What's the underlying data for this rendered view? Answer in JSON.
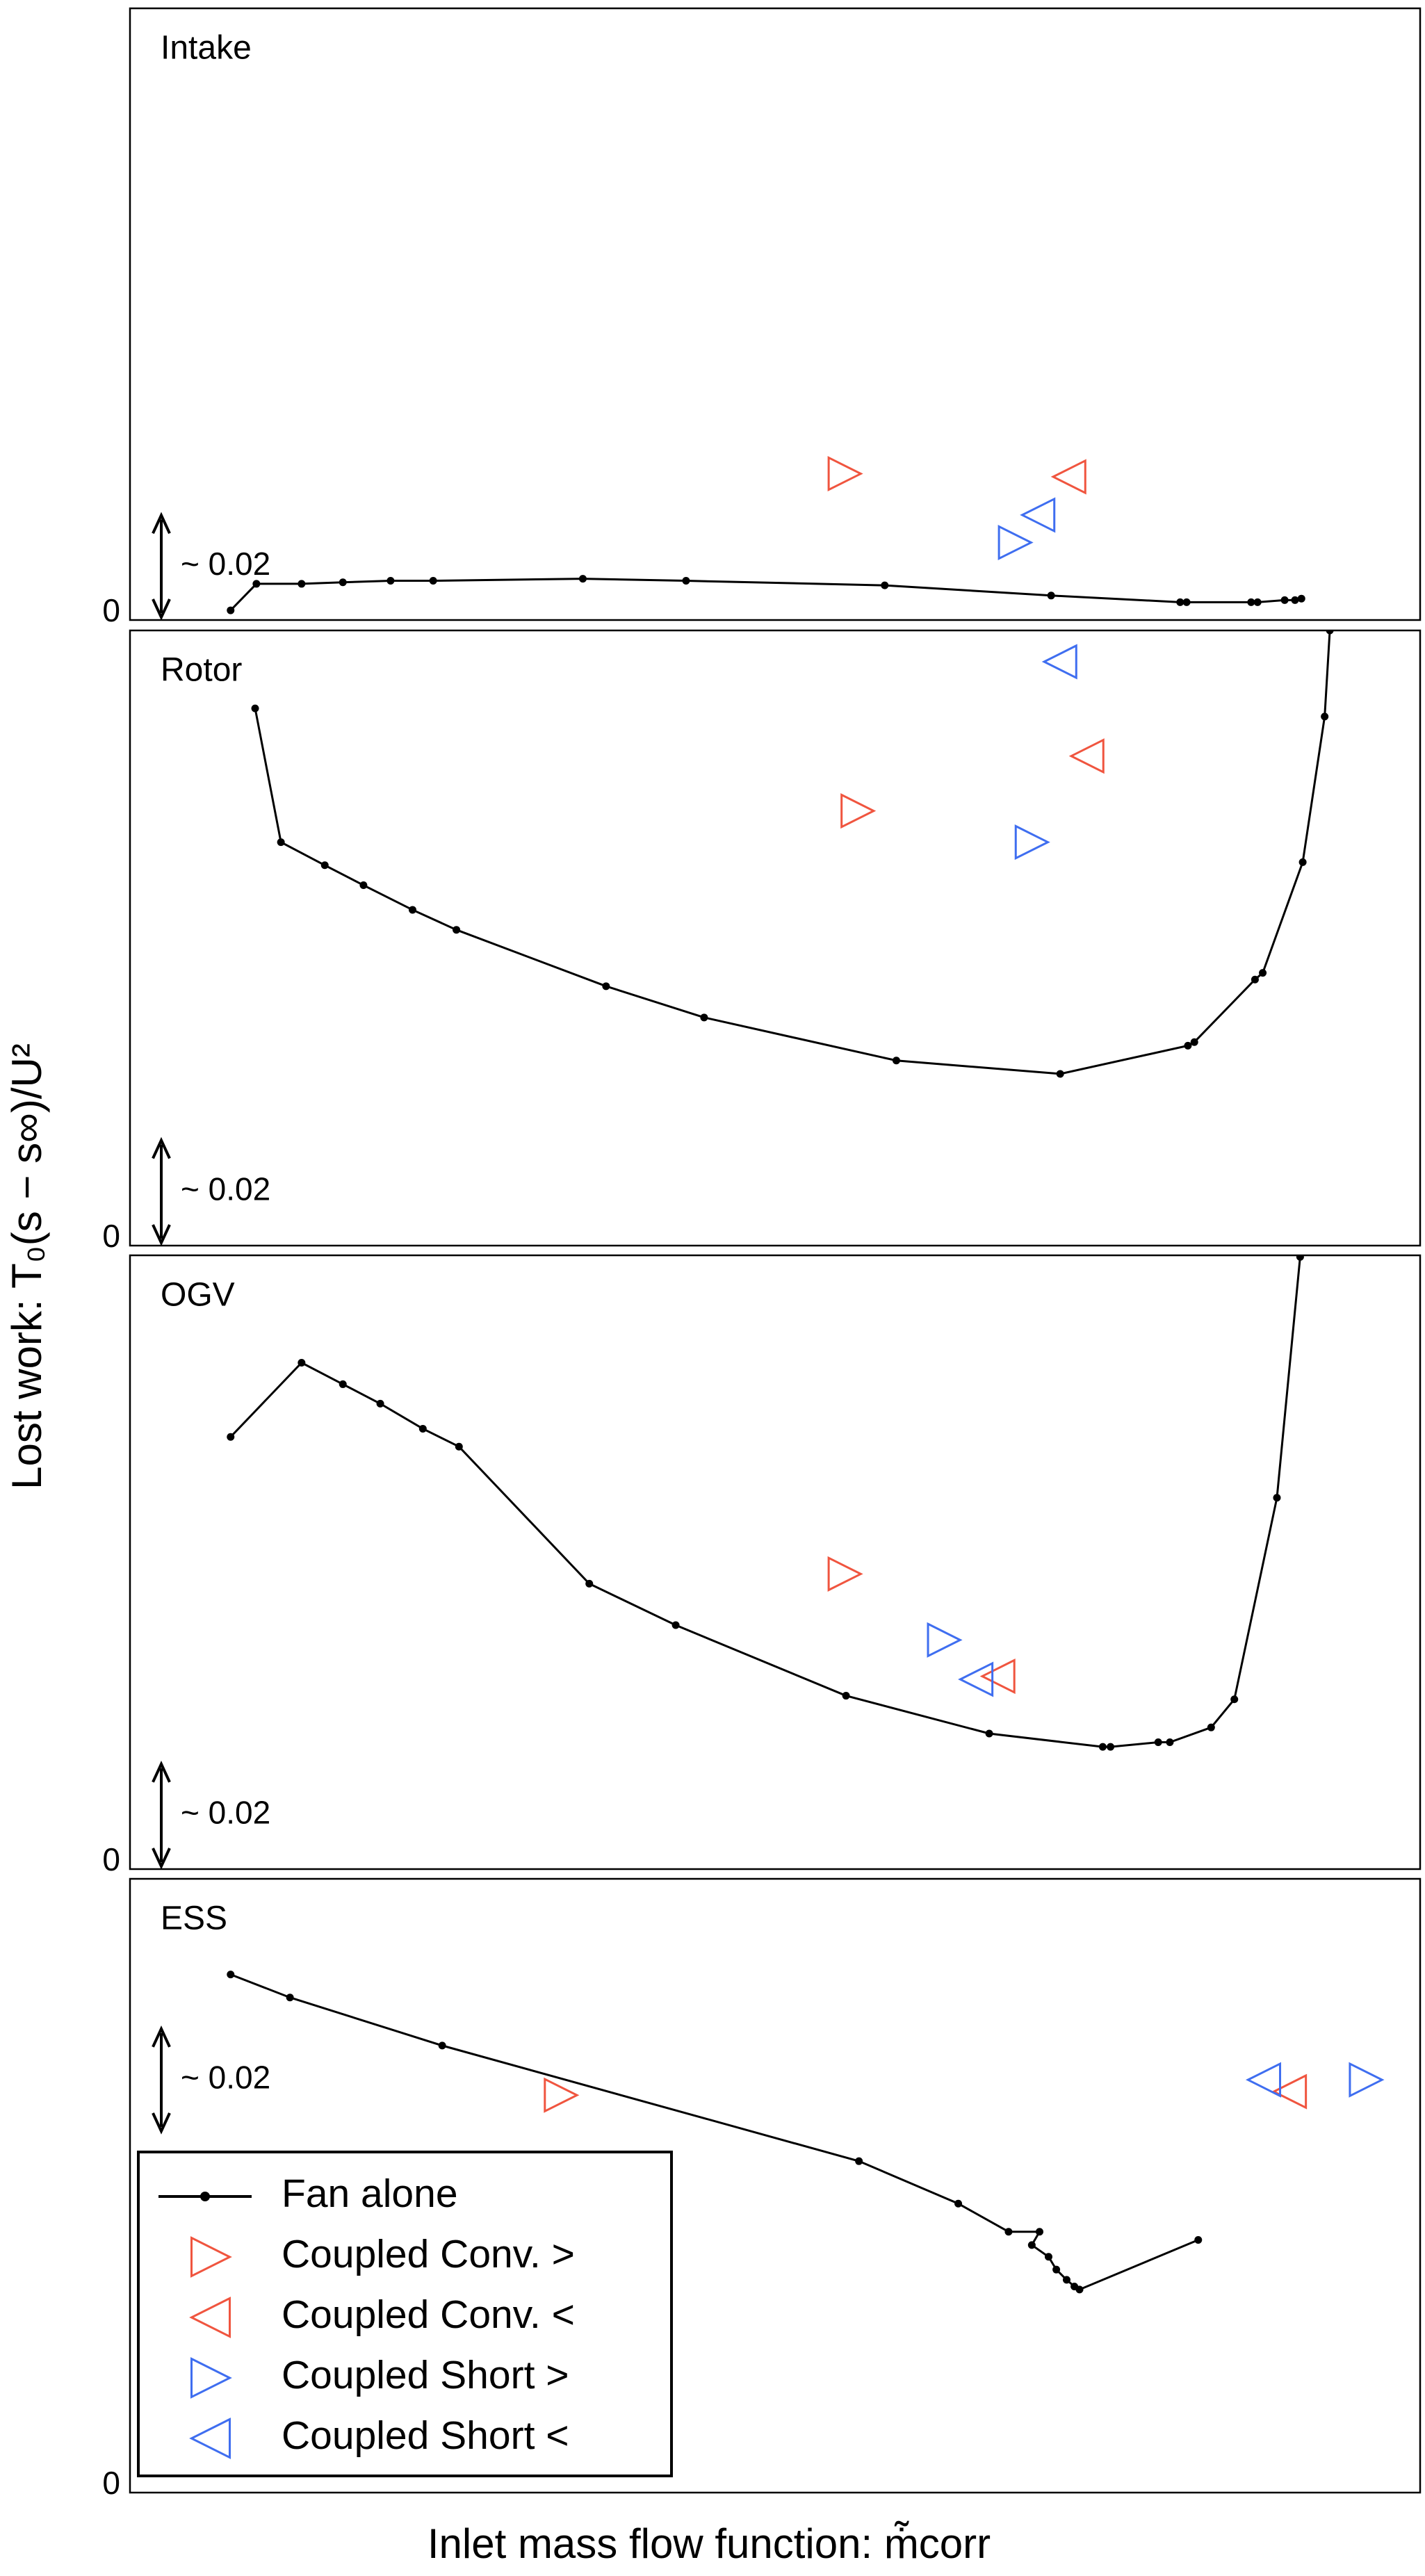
{
  "xlabel": "Inlet mass flow function: ṁ̃corr",
  "ylabel": "Lost work: T₀(s − s∞)/U²",
  "chart_data": [
    {
      "type": "line",
      "title": "Intake",
      "xlim": [
        0,
        100
      ],
      "ylim": [
        0,
        0.12
      ],
      "yticks": [
        0
      ],
      "scale_bar": {
        "value": 0.02,
        "label": "~ 0.02"
      },
      "series": [
        {
          "color": "#000000",
          "marker": "line-dot",
          "x": [
            7.8,
            9.8,
            13.3,
            16.5,
            20.2,
            23.5,
            35.1,
            43.1,
            58.5,
            71.4,
            81.4,
            81.9,
            86.9,
            87.4,
            89.5,
            90.3,
            90.8
          ],
          "values": [
            0.0019,
            0.0071,
            0.0071,
            0.0074,
            0.0077,
            0.0077,
            0.0081,
            0.0077,
            0.0068,
            0.0048,
            0.0035,
            0.0035,
            0.0035,
            0.0035,
            0.0039,
            0.0039,
            0.0042
          ]
        },
        {
          "color": "#f0553f",
          "marker": "triangle-right",
          "x": [
            55.4
          ],
          "values": [
            0.0287
          ]
        },
        {
          "color": "#f0553f",
          "marker": "triangle-left",
          "x": [
            72.8
          ],
          "values": [
            0.0281
          ]
        },
        {
          "color": "#3f6ef0",
          "marker": "triangle-right",
          "x": [
            68.6
          ],
          "values": [
            0.0152
          ]
        },
        {
          "color": "#3f6ef0",
          "marker": "triangle-left",
          "x": [
            70.4
          ],
          "values": [
            0.0206
          ]
        }
      ]
    },
    {
      "type": "line",
      "title": "Rotor",
      "xlim": [
        0,
        100
      ],
      "ylim": [
        0,
        0.12
      ],
      "yticks": [
        0
      ],
      "scale_bar": {
        "value": 0.02,
        "label": "~ 0.02"
      },
      "series": [
        {
          "color": "#000000",
          "marker": "line-dot",
          "x": [
            9.7,
            11.7,
            15.1,
            18.1,
            21.9,
            25.3,
            36.9,
            44.5,
            59.4,
            72.1,
            82.0,
            82.5,
            87.2,
            87.8,
            90.9,
            92.6,
            93.0
          ],
          "values": [
            0.1048,
            0.0787,
            0.0742,
            0.0703,
            0.0655,
            0.0616,
            0.0506,
            0.0445,
            0.0361,
            0.0335,
            0.039,
            0.0397,
            0.0519,
            0.0532,
            0.0748,
            0.1032,
            0.12
          ]
        },
        {
          "color": "#f0553f",
          "marker": "triangle-right",
          "x": [
            56.4
          ],
          "values": [
            0.0848
          ]
        },
        {
          "color": "#f0553f",
          "marker": "triangle-left",
          "x": [
            74.2
          ],
          "values": [
            0.0955
          ]
        },
        {
          "color": "#3f6ef0",
          "marker": "triangle-right",
          "x": [
            69.9
          ],
          "values": [
            0.0787
          ]
        },
        {
          "color": "#3f6ef0",
          "marker": "triangle-left",
          "x": [
            72.1
          ],
          "values": [
            0.1139
          ]
        }
      ]
    },
    {
      "type": "line",
      "title": "OGV",
      "xlim": [
        0,
        100
      ],
      "ylim": [
        0,
        0.12
      ],
      "yticks": [
        0
      ],
      "scale_bar": {
        "value": 0.02,
        "label": "~ 0.02"
      },
      "series": [
        {
          "color": "#000000",
          "marker": "line-dot",
          "x": [
            7.8,
            13.3,
            16.5,
            19.4,
            22.7,
            25.5,
            35.6,
            42.3,
            55.5,
            66.6,
            75.4,
            76.0,
            79.7,
            80.6,
            83.8,
            85.6,
            88.9,
            90.7
          ],
          "values": [
            0.0845,
            0.099,
            0.0948,
            0.091,
            0.0861,
            0.0826,
            0.0558,
            0.0477,
            0.0339,
            0.0265,
            0.0239,
            0.0239,
            0.0248,
            0.0248,
            0.0277,
            0.0332,
            0.0726,
            0.1197
          ]
        },
        {
          "color": "#f0553f",
          "marker": "triangle-right",
          "x": [
            55.4
          ],
          "values": [
            0.0577
          ]
        },
        {
          "color": "#f0553f",
          "marker": "triangle-left",
          "x": [
            67.3
          ],
          "values": [
            0.0377
          ]
        },
        {
          "color": "#3f6ef0",
          "marker": "triangle-right",
          "x": [
            63.1
          ],
          "values": [
            0.0448
          ]
        },
        {
          "color": "#3f6ef0",
          "marker": "triangle-left",
          "x": [
            65.6
          ],
          "values": [
            0.0371
          ]
        }
      ]
    },
    {
      "type": "line",
      "title": "ESS",
      "xlim": [
        0,
        100
      ],
      "ylim": [
        0,
        0.12
      ],
      "yticks": [
        0
      ],
      "scale_bar": {
        "value": 0.02,
        "label": "~ 0.02"
      },
      "legend": "lower left",
      "series": [
        {
          "name": "Fan alone",
          "color": "#000000",
          "marker": "line-dot",
          "x": [
            7.8,
            12.4,
            24.2,
            56.5,
            64.2,
            68.1,
            70.5,
            69.9,
            71.2,
            71.8,
            72.6,
            73.2,
            73.6,
            82.8
          ],
          "values": [
            0.1013,
            0.0968,
            0.0874,
            0.0648,
            0.0565,
            0.051,
            0.051,
            0.0484,
            0.0461,
            0.0436,
            0.0416,
            0.0403,
            0.0397,
            0.0494
          ]
        },
        {
          "name": "Coupled Conv. >",
          "color": "#f0553f",
          "marker": "triangle-right",
          "x": [
            33.4
          ],
          "values": [
            0.0777
          ]
        },
        {
          "name": "Coupled Conv. <",
          "color": "#f0553f",
          "marker": "triangle-left",
          "x": [
            89.9
          ],
          "values": [
            0.0784
          ]
        },
        {
          "name": "Coupled Short >",
          "color": "#3f6ef0",
          "marker": "triangle-right",
          "x": [
            95.8
          ],
          "values": [
            0.0807
          ]
        },
        {
          "name": "Coupled Short <",
          "color": "#3f6ef0",
          "marker": "triangle-left",
          "x": [
            87.9
          ],
          "values": [
            0.0807
          ]
        }
      ]
    }
  ]
}
